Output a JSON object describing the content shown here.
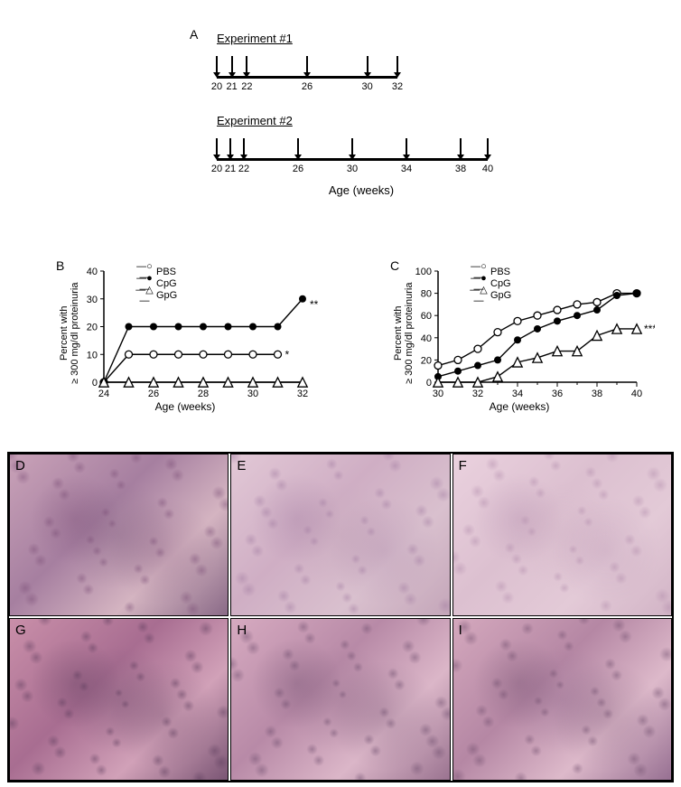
{
  "panelA": {
    "label": "A",
    "exp1": {
      "title": "Experiment #1",
      "range": [
        20,
        32
      ],
      "arrows": [
        20,
        21,
        22,
        26,
        30,
        32
      ],
      "ticks": [
        20,
        21,
        22,
        26,
        30,
        32
      ]
    },
    "exp2": {
      "title": "Experiment #2",
      "range": [
        20,
        40
      ],
      "arrows": [
        20,
        21,
        22,
        26,
        30,
        34,
        38,
        40
      ],
      "ticks": [
        20,
        21,
        22,
        26,
        30,
        34,
        38,
        40
      ]
    },
    "axis_title": "Age (weeks)"
  },
  "panelB": {
    "label": "B",
    "y_label_1": "Percent with",
    "y_label_2": "≥ 300 mg/dl proteinuria",
    "x_label": "Age (weeks)",
    "xlim": [
      24,
      32
    ],
    "ylim": [
      0,
      40
    ],
    "xticks": [
      24,
      26,
      28,
      30,
      32
    ],
    "yticks": [
      0,
      10,
      20,
      30,
      40
    ],
    "xgridstep": 2,
    "xsubtick_step": 1,
    "ygridstep": 10,
    "series": {
      "PBS": {
        "marker": "open-circle",
        "color": "#000000",
        "points": [
          [
            24,
            0
          ],
          [
            25,
            10
          ],
          [
            26,
            10
          ],
          [
            27,
            10
          ],
          [
            28,
            10
          ],
          [
            29,
            10
          ],
          [
            30,
            10
          ],
          [
            31,
            10
          ]
        ],
        "annot": "*",
        "annot_at": [
          31,
          10
        ]
      },
      "CpG": {
        "marker": "filled-circle",
        "color": "#000000",
        "points": [
          [
            24,
            0
          ],
          [
            25,
            20
          ],
          [
            26,
            20
          ],
          [
            27,
            20
          ],
          [
            28,
            20
          ],
          [
            29,
            20
          ],
          [
            30,
            20
          ],
          [
            31,
            20
          ],
          [
            32,
            30
          ]
        ],
        "annot": "**",
        "annot_at": [
          32,
          28
        ]
      },
      "GpG": {
        "marker": "open-triangle",
        "color": "#000000",
        "points": [
          [
            24,
            0
          ],
          [
            25,
            0
          ],
          [
            26,
            0
          ],
          [
            27,
            0
          ],
          [
            28,
            0
          ],
          [
            29,
            0
          ],
          [
            30,
            0
          ],
          [
            31,
            0
          ],
          [
            32,
            0
          ]
        ]
      }
    },
    "legend_order": [
      "PBS",
      "CpG",
      "GpG"
    ]
  },
  "panelC": {
    "label": "C",
    "y_label_1": "Percent with",
    "y_label_2": "≥ 300 mg/dl proteinuria",
    "x_label": "Age (weeks)",
    "xlim": [
      30,
      40
    ],
    "ylim": [
      0,
      100
    ],
    "xticks": [
      30,
      32,
      34,
      36,
      38,
      40
    ],
    "yticks": [
      0,
      20,
      40,
      60,
      80,
      100
    ],
    "xgridstep": 2,
    "xsubtick_step": 1,
    "ygridstep": 20,
    "series": {
      "PBS": {
        "marker": "open-circle",
        "color": "#000000",
        "points": [
          [
            30,
            15
          ],
          [
            31,
            20
          ],
          [
            32,
            30
          ],
          [
            33,
            45
          ],
          [
            34,
            55
          ],
          [
            35,
            60
          ],
          [
            36,
            65
          ],
          [
            37,
            70
          ],
          [
            38,
            72
          ],
          [
            39,
            80
          ],
          [
            40,
            80
          ]
        ]
      },
      "CpG": {
        "marker": "filled-circle",
        "color": "#000000",
        "points": [
          [
            30,
            5
          ],
          [
            31,
            10
          ],
          [
            32,
            15
          ],
          [
            33,
            20
          ],
          [
            34,
            38
          ],
          [
            35,
            48
          ],
          [
            36,
            55
          ],
          [
            37,
            60
          ],
          [
            38,
            65
          ],
          [
            39,
            78
          ],
          [
            40,
            80
          ]
        ]
      },
      "GpG": {
        "marker": "open-triangle",
        "color": "#000000",
        "points": [
          [
            30,
            0
          ],
          [
            31,
            0
          ],
          [
            32,
            0
          ],
          [
            33,
            5
          ],
          [
            34,
            18
          ],
          [
            35,
            22
          ],
          [
            36,
            28
          ],
          [
            37,
            28
          ],
          [
            38,
            42
          ],
          [
            39,
            48
          ],
          [
            40,
            48
          ]
        ],
        "annot": "***",
        "annot_at": [
          40,
          48
        ]
      }
    },
    "legend_order": [
      "PBS",
      "CpG",
      "GpG"
    ]
  },
  "histology": {
    "cells": [
      {
        "label": "D",
        "bg_colors": [
          "#c9a2b8",
          "#a67fa0",
          "#d4b4c1",
          "#8a6a87"
        ],
        "accent": "#7a4d75"
      },
      {
        "label": "E",
        "bg_colors": [
          "#e2c8d6",
          "#cfaec4",
          "#d9c0ce",
          "#c4a6b9"
        ],
        "accent": "#a07aa0"
      },
      {
        "label": "F",
        "bg_colors": [
          "#ead1de",
          "#dcc0d0",
          "#e3cad7",
          "#d2b4c6"
        ],
        "accent": "#b08aaa"
      },
      {
        "label": "G",
        "bg_colors": [
          "#c98fa9",
          "#a86d91",
          "#d1a1b8",
          "#7a5574"
        ],
        "accent": "#5a3a5a"
      },
      {
        "label": "H",
        "bg_colors": [
          "#d6aac0",
          "#b88aa7",
          "#dbb6c8",
          "#9a7390"
        ],
        "accent": "#6a4a6a"
      },
      {
        "label": "I",
        "bg_colors": [
          "#d4a8bd",
          "#b587a4",
          "#ddb9ca",
          "#977092"
        ],
        "accent": "#6e4c6b"
      }
    ]
  },
  "style": {
    "font_small": 11,
    "font_label": 14,
    "axis_color": "#000000",
    "line_width": 1.5,
    "marker_size": 4
  }
}
